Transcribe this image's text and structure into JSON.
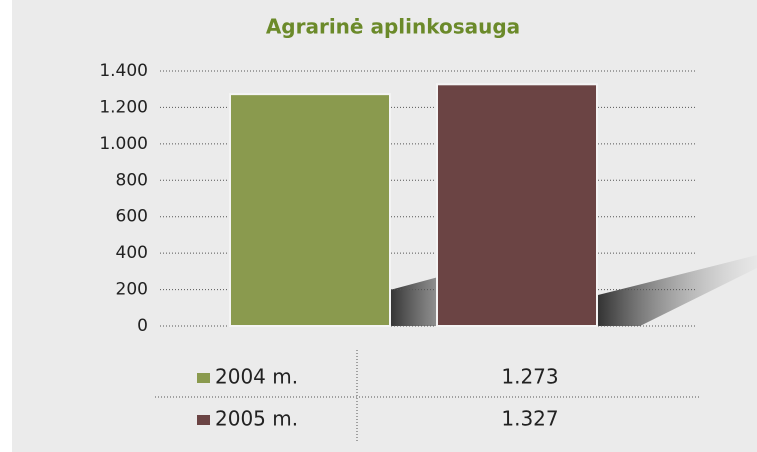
{
  "chart_data": {
    "type": "bar",
    "title": "Agrarinė aplinkosauga",
    "series": [
      {
        "name": "2004 m.",
        "color": "#8a9a4e",
        "values": [
          1273
        ],
        "value_labels": [
          "1.273"
        ]
      },
      {
        "name": "2005 m.",
        "color": "#6b4444",
        "values": [
          1327
        ],
        "value_labels": [
          "1.327"
        ]
      }
    ],
    "ylim": [
      0,
      1400
    ],
    "yticks": [
      0,
      200,
      400,
      600,
      800,
      {
        "value": 1000,
        "label": "1.000"
      },
      {
        "value": 1200,
        "label": "1.200"
      },
      {
        "value": 1400,
        "label": "1.400"
      }
    ],
    "grid": true
  }
}
